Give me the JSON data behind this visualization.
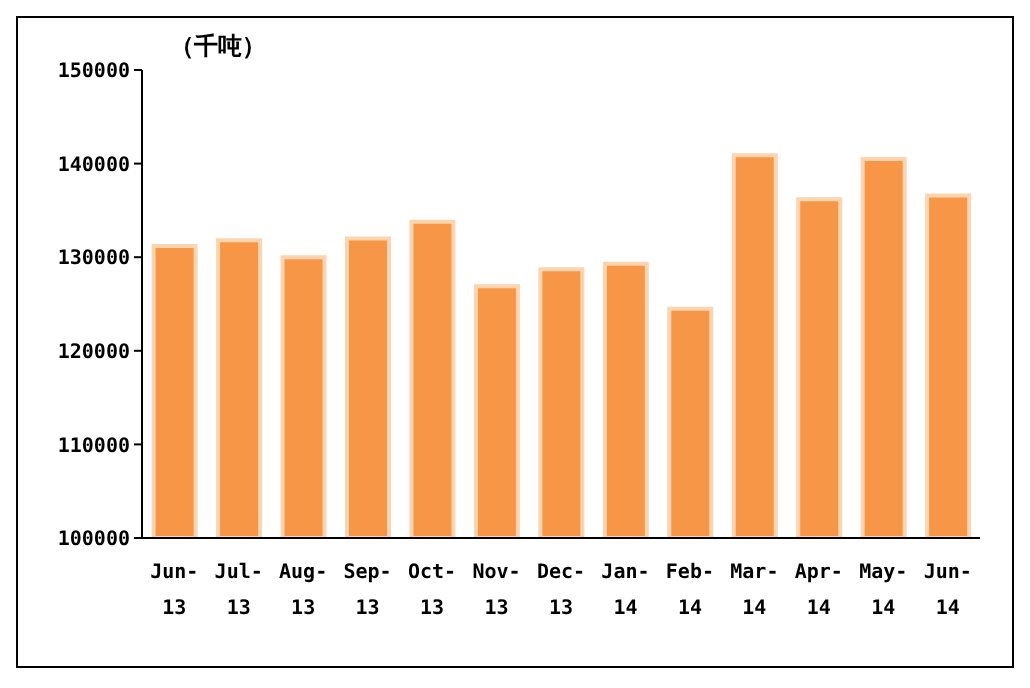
{
  "chart_data": {
    "type": "bar",
    "ylabel": "（千吨）",
    "categories": [
      "Jun-13",
      "Jul-13",
      "Aug-13",
      "Sep-13",
      "Oct-13",
      "Nov-13",
      "Dec-13",
      "Jan-14",
      "Feb-14",
      "Mar-14",
      "Apr-14",
      "May-14",
      "Jun-14"
    ],
    "values": [
      131200,
      131800,
      130000,
      132000,
      133800,
      126900,
      128700,
      129300,
      124500,
      140900,
      136200,
      140500,
      136600
    ],
    "color": "#f79646",
    "ylim": [
      100000,
      150000
    ],
    "yticks": [
      100000,
      110000,
      120000,
      130000,
      140000,
      150000
    ],
    "grid": false
  }
}
